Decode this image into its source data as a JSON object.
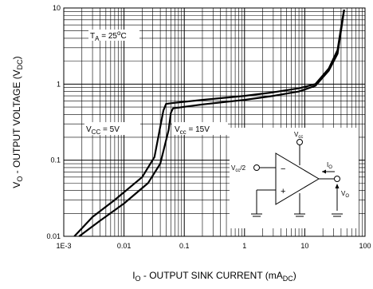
{
  "chart_data": {
    "type": "line",
    "x_scale": "log",
    "y_scale": "log",
    "xlim": [
      0.001,
      100
    ],
    "ylim": [
      0.01,
      10
    ],
    "grid": true,
    "x_tick_labels": [
      "1E-3",
      "0.01",
      "0.1",
      "1",
      "10",
      "100"
    ],
    "y_tick_labels": [
      "0.01",
      "0.1",
      "1",
      "10"
    ],
    "xlabel": {
      "main": "I",
      "sub1": "O",
      "mid": " - OUTPUT SINK CURRENT (mA",
      "sub2": "DC",
      "end": ")"
    },
    "ylabel": {
      "main": "V",
      "sub1": "O",
      "mid": " - OUTPUT VOLTAGE (V",
      "sub2": "DC",
      "end": ")"
    },
    "annotations": {
      "temp": {
        "t": "T",
        "sub": "A",
        "rest": " = 25",
        "deg": "o",
        "unit": "C"
      },
      "vcc5": {
        "v": "V",
        "sub": "CC",
        "rest": " = 5V"
      },
      "vcc15": {
        "v": "V",
        "sub": "cc",
        "rest": " = 15V"
      }
    },
    "series": [
      {
        "label": "VCC = 5V",
        "x": [
          0.0015,
          0.003,
          0.007,
          0.02,
          0.032,
          0.045,
          0.05,
          0.06,
          0.2,
          1,
          3,
          8,
          15,
          25,
          35,
          42,
          45
        ],
        "y": [
          0.01,
          0.018,
          0.03,
          0.06,
          0.11,
          0.45,
          0.55,
          0.56,
          0.62,
          0.7,
          0.78,
          0.88,
          1.0,
          1.6,
          2.8,
          7.0,
          9.5
        ]
      },
      {
        "label": "VCC = 15V",
        "x": [
          0.0018,
          0.004,
          0.01,
          0.025,
          0.04,
          0.055,
          0.06,
          0.065,
          0.2,
          1,
          3,
          8,
          15,
          25,
          35,
          42,
          45
        ],
        "y": [
          0.01,
          0.016,
          0.027,
          0.05,
          0.09,
          0.25,
          0.42,
          0.48,
          0.54,
          0.62,
          0.7,
          0.8,
          0.95,
          1.5,
          2.5,
          6.5,
          9.5
        ]
      }
    ]
  },
  "schematic": {
    "vcc": "V",
    "vcc_sub": "cc",
    "vin": "V",
    "vin_sub": "cc",
    "vin_rest": "/2",
    "minus": "−",
    "plus": "+",
    "io": "I",
    "io_sub": "O",
    "vo": "V",
    "vo_sub": "O"
  }
}
